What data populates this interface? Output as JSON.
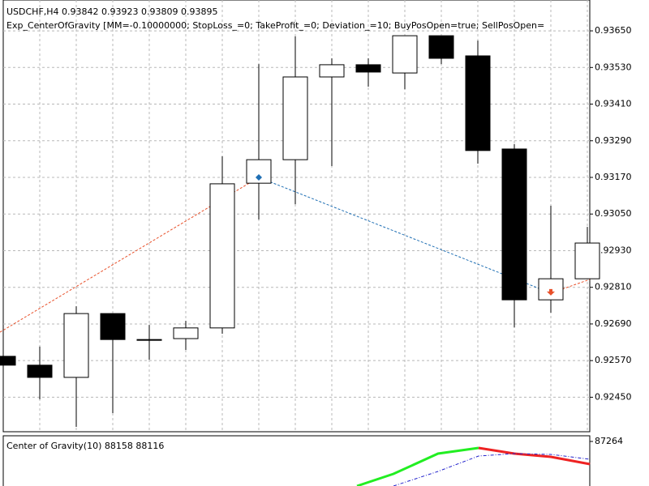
{
  "chart_data": [
    {
      "type": "candlestick",
      "title": "USDCHF,H4  0.93842 0.93923 0.93809 0.93895",
      "subtitle": "Exp_CenterOfGravity [MM=-0.10000000; StopLoss_=0; TakeProfit_=0; Deviation_=10; BuyPosOpen=true; SellPosOpen=",
      "categories": [
        null,
        null,
        null,
        null,
        null,
        null,
        null,
        null,
        null,
        null,
        null,
        null,
        null,
        null,
        null,
        null,
        null
      ],
      "open": [
        0.92584,
        0.92555,
        0.92515,
        0.92724,
        0.92639,
        0.92642,
        0.92677,
        0.93151,
        0.93228,
        0.93499,
        0.93539,
        0.93512,
        0.93634,
        0.93568,
        0.93263,
        0.92769,
        0.92838
      ],
      "high": [
        0.92584,
        0.92616,
        0.92748,
        0.92724,
        0.92687,
        0.927,
        0.93239,
        0.93541,
        0.93632,
        0.9356,
        0.9356,
        0.93634,
        0.93634,
        0.93618,
        0.93279,
        0.93077,
        0.93008
      ],
      "low": [
        0.92555,
        0.92443,
        0.92353,
        0.92398,
        0.92573,
        0.92605,
        0.92658,
        0.93032,
        0.93082,
        0.93207,
        0.93467,
        0.93459,
        0.93541,
        0.93215,
        0.92679,
        0.92727,
        0.92838
      ],
      "close": [
        0.92555,
        0.92515,
        0.92724,
        0.92639,
        0.92639,
        0.92677,
        0.93149,
        0.93228,
        0.93499,
        0.93539,
        0.93515,
        0.93634,
        0.9356,
        0.93258,
        0.92769,
        0.92838,
        0.92955
      ],
      "up_color": "#ffffff",
      "down_color": "#000000",
      "ylim": [
        0.92337,
        0.93751
      ],
      "yticks": [
        {
          "value": 0.9365,
          "label": "0.93650"
        },
        {
          "value": 0.9353,
          "label": "0.93530"
        },
        {
          "value": 0.9341,
          "label": "0.93410"
        },
        {
          "value": 0.9329,
          "label": "0.93290"
        },
        {
          "value": 0.9317,
          "label": "0.93170"
        },
        {
          "value": 0.9305,
          "label": "0.93050"
        },
        {
          "value": 0.9293,
          "label": "0.92930"
        },
        {
          "value": 0.9281,
          "label": "0.92810"
        },
        {
          "value": 0.9269,
          "label": "0.92690"
        },
        {
          "value": 0.9257,
          "label": "0.92570"
        },
        {
          "value": 0.9245,
          "label": "0.92450"
        }
      ],
      "grid": true,
      "trade_lines": [
        {
          "color": "#e8502a",
          "x": [
            -0.09,
            7
          ],
          "values": [
            0.92663,
            0.9317
          ]
        },
        {
          "color": "#1f6fb4",
          "x": [
            7,
            15
          ],
          "values": [
            0.9317,
            0.92791
          ]
        },
        {
          "color": "#e8502a",
          "x": [
            15,
            16.07
          ],
          "values": [
            0.92791,
            0.92836
          ]
        }
      ]
    },
    {
      "type": "line",
      "title": "Center of Gravity(10) 88158 88116",
      "ylim": [
        86164,
        87404
      ],
      "yticks": [
        87264
      ],
      "series": [
        {
          "color": "#22ee22",
          "dashed": false,
          "x": [
            9.69,
            10.69,
            11.91,
            13.02
          ],
          "values": [
            86164,
            86464,
            86964,
            87104
          ]
        },
        {
          "color": "#ee2222",
          "dashed": false,
          "x": [
            13.02,
            14,
            15,
            16.07
          ],
          "values": [
            87104,
            86964,
            86884,
            86704
          ]
        },
        {
          "color": "#2222cc",
          "dashed": true,
          "x": [
            10.69,
            11.91,
            13.02,
            14,
            15,
            16.07
          ],
          "values": [
            86164,
            86524,
            86904,
            86964,
            86944,
            86824
          ]
        }
      ]
    }
  ]
}
